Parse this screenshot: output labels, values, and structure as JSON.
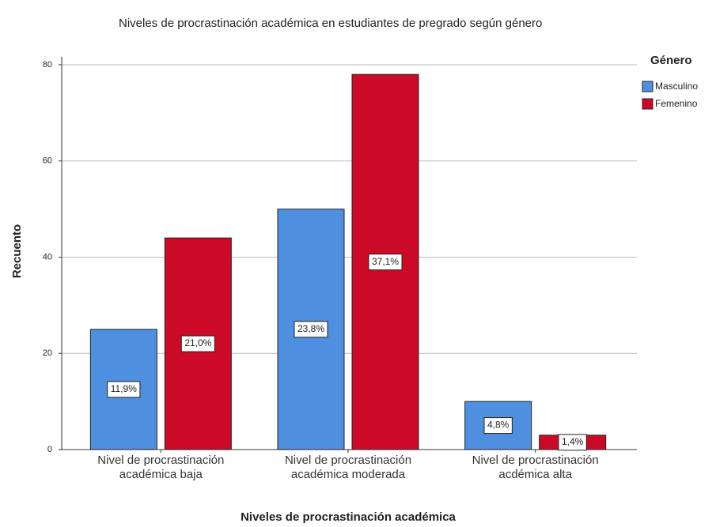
{
  "chart_data": {
    "type": "bar",
    "title": "Niveles de procrastinación académica en estudiantes de pregrado según género",
    "x_label": "Niveles de procrastinación académica",
    "y_label": "Recuento",
    "categories": [
      "Nivel de procrastinación académica baja",
      "Nivel de procrastinación académica moderada",
      "Nivel de procrastinación acdémica alta"
    ],
    "legend_title": "Género",
    "series": [
      {
        "name": "Masculino",
        "color": "#4f8fdf",
        "values": [
          25,
          50,
          10
        ],
        "percent_labels": [
          "11,9%",
          "23,8%",
          "4,8%"
        ]
      },
      {
        "name": "Femenino",
        "color": "#cc0a28",
        "values": [
          44,
          78,
          3
        ],
        "percent_labels": [
          "21,0%",
          "37,1%",
          "1,4%"
        ]
      }
    ],
    "ylim": [
      0,
      80
    ],
    "yticks": [
      0,
      20,
      40,
      60,
      80
    ],
    "grid": true
  }
}
